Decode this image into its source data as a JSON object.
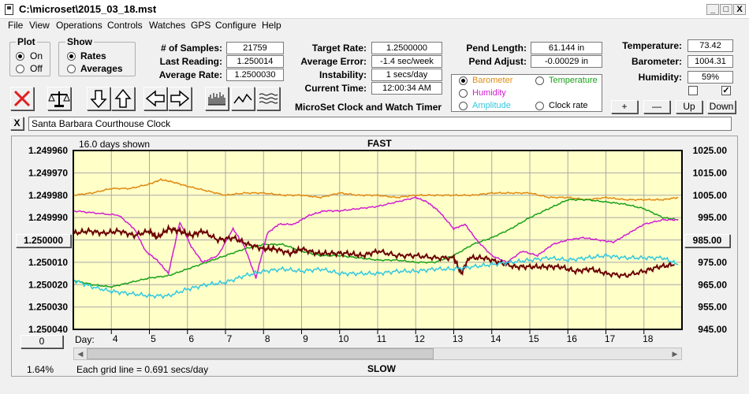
{
  "window": {
    "title": "C:\\microset\\2015_03_18.mst",
    "min_label": "_",
    "max_label": "□",
    "close_label": "X"
  },
  "menu": [
    "File",
    "View",
    "Operations",
    "Controls",
    "Watches",
    "GPS",
    "Configure",
    "Help"
  ],
  "plot_group": {
    "label": "Plot",
    "options": [
      "On",
      "Off"
    ],
    "selected": 0
  },
  "show_group": {
    "label": "Show",
    "options": [
      "Rates",
      "Averages"
    ],
    "selected": 0
  },
  "stats": [
    {
      "label": "# of Samples:",
      "value": "21759"
    },
    {
      "label": "Last Reading:",
      "value": "1.250014"
    },
    {
      "label": "Average Rate:",
      "value": "1.2500030"
    }
  ],
  "rates": [
    {
      "label": "Target Rate:",
      "value": "1.2500000"
    },
    {
      "label": "Average Error:",
      "value": "-1.4 sec/week"
    },
    {
      "label": "Instability:",
      "value": "1 secs/day"
    },
    {
      "label": "Current Time:",
      "value": "12:00:34 AM"
    }
  ],
  "app_name": "MicroSet Clock and Watch Timer",
  "pendulum": [
    {
      "label": "Pend Length:",
      "value": "61.144 in"
    },
    {
      "label": "Pend Adjust:",
      "value": "-0.00029 in"
    }
  ],
  "sensor_options": [
    {
      "label": "Barometer",
      "color": "#e08a10",
      "selected": true
    },
    {
      "label": "Temperature",
      "color": "#18a018",
      "selected": false
    },
    {
      "label": "Humidity",
      "color": "#d020d0",
      "selected": false
    },
    {
      "label": "Clock rate",
      "color": "#000000",
      "selected": false
    },
    {
      "label": "Amplitude",
      "color": "#30c8e0",
      "selected": false
    }
  ],
  "environment": [
    {
      "label": "Temperature:",
      "value": "73.42"
    },
    {
      "label": "Barometer:",
      "value": "1004.31"
    },
    {
      "label": "Humidity:",
      "value": "59%"
    }
  ],
  "checkboxes": [
    false,
    true
  ],
  "env_buttons": [
    "+",
    "—",
    "Up",
    "Down"
  ],
  "clock_name": "Santa Barbara Courthouse Clock",
  "clock_clear_label": "X",
  "chart": {
    "days_shown": "16.0 days shown",
    "top_label": "FAST",
    "bottom_label": "SLOW",
    "grid_note": "Each grid line = 0.691 secs/day",
    "percent": "1.64%",
    "center_left_button": "1.250000",
    "center_right_button": "985.00",
    "bottom_left_button": "0",
    "day_label": "Day:"
  },
  "chart_data": {
    "type": "line",
    "x_label": "Day",
    "x_ticks": [
      "4",
      "5",
      "6",
      "7",
      "8",
      "9",
      "10",
      "11",
      "12",
      "13",
      "14",
      "15",
      "16",
      "17",
      "18"
    ],
    "x_tick_values": [
      4,
      5,
      6,
      7,
      8,
      9,
      10,
      11,
      12,
      13,
      14,
      15,
      16,
      17,
      18
    ],
    "xlim": [
      3.0,
      19.0
    ],
    "y_left_ticks": [
      "1.249960",
      "1.249970",
      "1.249980",
      "1.249990",
      "1.250000",
      "1.250010",
      "1.250020",
      "1.250030",
      "1.250040"
    ],
    "y_left_tick_values": [
      1.24996,
      1.24997,
      1.24998,
      1.24999,
      1.25,
      1.25001,
      1.25002,
      1.25003,
      1.25004
    ],
    "y_left_range": [
      1.24996,
      1.25004
    ],
    "y_left_inverted": true,
    "y_right_ticks": [
      "1025.00",
      "1015.00",
      "1005.00",
      "995.00",
      "985.00",
      "975.00",
      "965.00",
      "955.00",
      "945.00"
    ],
    "y_right_tick_values": [
      1025,
      1015,
      1005,
      995,
      985,
      975,
      965,
      955,
      945
    ],
    "y_right_range": [
      945,
      1025
    ],
    "grid": true,
    "series": [
      {
        "name": "Barometer",
        "axis": "right",
        "color": "#e08a10",
        "x": [
          3.0,
          3.5,
          4.0,
          4.5,
          5.0,
          5.3,
          5.6,
          6.0,
          6.5,
          7.0,
          7.5,
          8.0,
          8.5,
          9.0,
          9.5,
          10.0,
          10.5,
          11.0,
          11.5,
          12.0,
          12.5,
          13.0,
          13.5,
          14.0,
          14.5,
          15.0,
          15.5,
          16.0,
          16.5,
          17.0,
          17.5,
          18.0,
          18.5,
          18.9
        ],
        "y": [
          1005,
          1006,
          1008,
          1008,
          1010,
          1012,
          1011,
          1009,
          1007,
          1005,
          1006,
          1006,
          1005,
          1005,
          1004,
          1006,
          1005,
          1005,
          1004,
          1005,
          1005,
          1005,
          1005,
          1006,
          1006,
          1006,
          1004,
          1004,
          1003,
          1004,
          1003,
          1003,
          1003,
          1004
        ]
      },
      {
        "name": "Temperature",
        "axis": "right",
        "color": "#18a018",
        "x": [
          3.0,
          3.5,
          4.0,
          4.5,
          5.0,
          5.5,
          6.0,
          6.5,
          7.0,
          7.5,
          8.0,
          8.5,
          9.0,
          9.5,
          10.0,
          10.5,
          11.0,
          11.5,
          12.0,
          12.5,
          13.0,
          13.5,
          14.0,
          14.5,
          15.0,
          15.5,
          16.0,
          16.5,
          17.0,
          17.5,
          18.0,
          18.5,
          18.9
        ],
        "y": [
          967,
          965,
          964,
          966,
          968,
          969,
          972,
          975,
          978,
          981,
          983,
          983,
          980,
          978,
          978,
          977,
          976,
          976,
          975,
          975,
          978,
          983,
          986,
          990,
          995,
          999,
          1003,
          1003,
          1002,
          1001,
          999,
          995,
          994
        ]
      },
      {
        "name": "Humidity",
        "axis": "right",
        "color": "#d020d0",
        "x": [
          3.0,
          3.6,
          4.2,
          4.6,
          4.9,
          5.2,
          5.5,
          5.8,
          6.1,
          6.4,
          6.8,
          7.2,
          7.5,
          7.8,
          8.1,
          8.4,
          8.8,
          9.2,
          9.6,
          10.0,
          10.5,
          11.0,
          11.5,
          12.0,
          12.3,
          12.6,
          13.0,
          13.3,
          13.6,
          14.0,
          14.4,
          14.8,
          15.2,
          15.6,
          16.0,
          16.4,
          16.8,
          17.2,
          17.6,
          18.0,
          18.5,
          18.9
        ],
        "y": [
          998,
          997,
          996,
          990,
          980,
          976,
          970,
          993,
          982,
          975,
          978,
          990,
          982,
          968,
          988,
          992,
          992,
          996,
          998,
          998,
          999,
          1000,
          1002,
          1004,
          1002,
          998,
          990,
          992,
          985,
          978,
          975,
          980,
          978,
          983,
          985,
          986,
          985,
          984,
          988,
          992,
          994,
          994
        ]
      },
      {
        "name": "Clock rate",
        "axis": "left",
        "color": "#6b0000",
        "x": [
          3.0,
          3.4,
          3.8,
          4.2,
          4.6,
          5.0,
          5.2,
          5.5,
          5.8,
          6.1,
          6.4,
          6.8,
          7.2,
          7.6,
          8.0,
          8.3,
          8.7,
          9.0,
          9.4,
          9.8,
          10.2,
          10.6,
          11.0,
          11.5,
          12.0,
          12.5,
          13.0,
          13.2,
          13.4,
          13.8,
          14.2,
          14.6,
          15.0,
          15.4,
          15.8,
          16.2,
          16.6,
          17.0,
          17.5,
          18.0,
          18.4,
          18.8
        ],
        "y": [
          1.249997,
          1.249996,
          1.249997,
          1.249996,
          1.249998,
          1.249996,
          1.249999,
          1.249995,
          1.249996,
          1.249998,
          1.249996,
          1.25,
          1.249999,
          1.250002,
          1.250004,
          1.250004,
          1.250006,
          1.250004,
          1.250006,
          1.250006,
          1.250006,
          1.250007,
          1.250005,
          1.250007,
          1.250007,
          1.250008,
          1.250008,
          1.250015,
          1.250008,
          1.250008,
          1.25001,
          1.250012,
          1.250012,
          1.250012,
          1.250012,
          1.250014,
          1.250013,
          1.250015,
          1.250016,
          1.250014,
          1.250012,
          1.250011
        ]
      },
      {
        "name": "Amplitude",
        "axis": "right",
        "color": "#30c8e0",
        "x": [
          3.0,
          3.5,
          4.0,
          4.5,
          5.0,
          5.5,
          6.0,
          6.5,
          7.0,
          7.5,
          8.0,
          8.5,
          9.0,
          9.5,
          10.0,
          10.5,
          11.0,
          11.5,
          12.0,
          12.5,
          13.0,
          13.5,
          14.0,
          14.5,
          15.0,
          15.5,
          16.0,
          16.5,
          17.0,
          17.5,
          18.0,
          18.5,
          18.9
        ],
        "y": [
          967,
          964,
          962,
          961,
          960,
          960,
          963,
          965,
          966,
          969,
          971,
          972,
          971,
          972,
          970,
          970,
          970,
          971,
          971,
          972,
          972,
          973,
          974,
          975,
          976,
          977,
          976,
          977,
          978,
          977,
          977,
          977,
          974
        ]
      }
    ]
  }
}
